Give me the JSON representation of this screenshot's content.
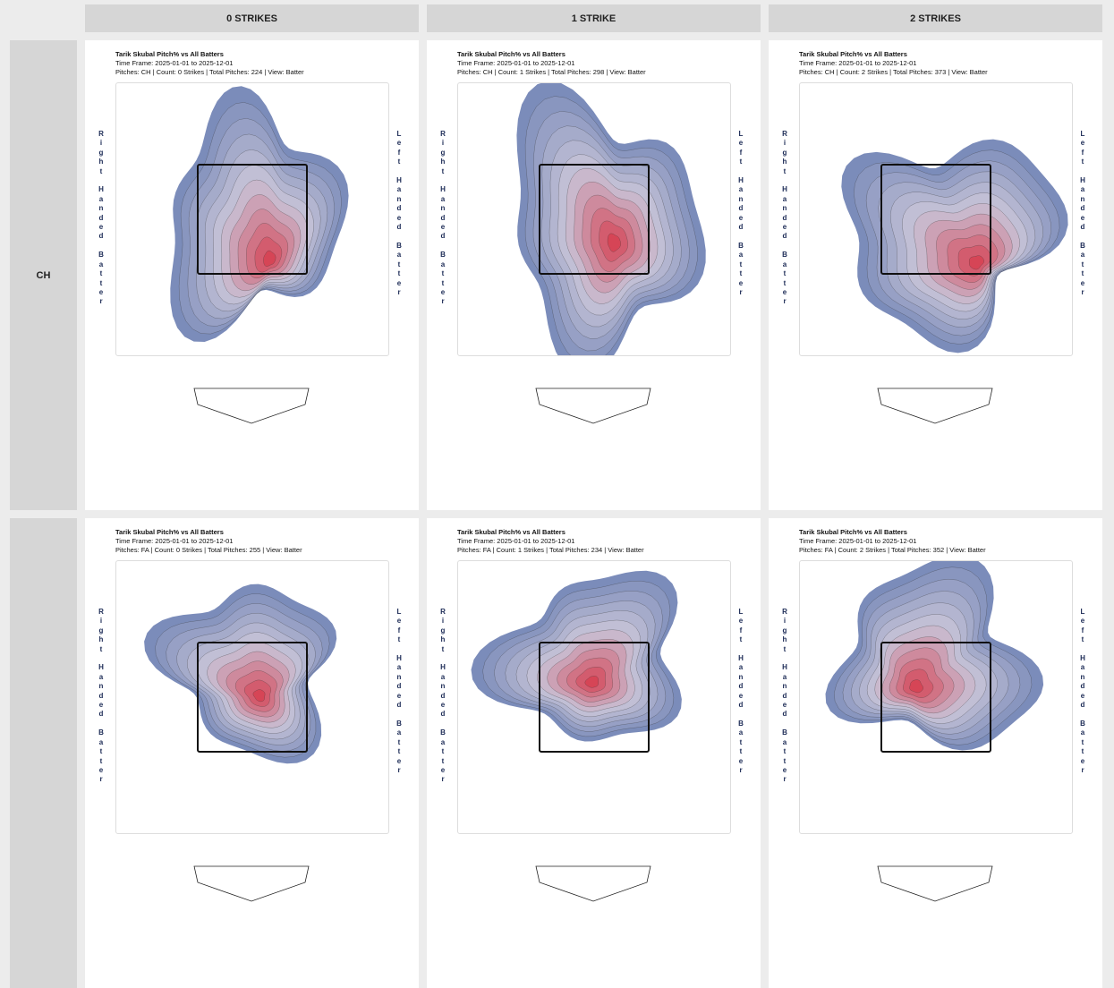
{
  "columns": [
    "0 STRIKES",
    "1 STRIKE",
    "2 STRIKES"
  ],
  "rows": [
    {
      "label": "CH",
      "panels": [
        {
          "title": "Tarik Skubal Pitch% vs All Batters",
          "timeframe": "Time Frame: 2025-01-01 to 2025-12-01",
          "info": "Pitches: CH | Count: 0 Strikes | Total Pitches: 224 | View: Batter"
        },
        {
          "title": "Tarik Skubal Pitch% vs All Batters",
          "timeframe": "Time Frame: 2025-01-01 to 2025-12-01",
          "info": "Pitches: CH | Count: 1 Strikes | Total Pitches: 298 | View: Batter"
        },
        {
          "title": "Tarik Skubal Pitch% vs All Batters",
          "timeframe": "Time Frame: 2025-01-01 to 2025-12-01",
          "info": "Pitches: CH | Count: 2 Strikes | Total Pitches: 373 | View: Batter"
        }
      ]
    },
    {
      "label": "",
      "panels": [
        {
          "title": "Tarik Skubal Pitch% vs All Batters",
          "timeframe": "Time Frame: 2025-01-01 to 2025-12-01",
          "info": "Pitches: FA | Count: 0 Strikes | Total Pitches: 255 | View: Batter"
        },
        {
          "title": "Tarik Skubal Pitch% vs All Batters",
          "timeframe": "Time Frame: 2025-01-01 to 2025-12-01",
          "info": "Pitches: FA | Count: 1 Strikes | Total Pitches: 234 | View: Batter"
        },
        {
          "title": "Tarik Skubal Pitch% vs All Batters",
          "timeframe": "Time Frame: 2025-01-01 to 2025-12-01",
          "info": "Pitches: FA | Count: 2 Strikes | Total Pitches: 352 | View: Batter"
        }
      ]
    }
  ],
  "side_labels": {
    "left": "Right Handed Batter",
    "right": "Left Handed Batter"
  },
  "colors": {
    "low": "#7b8cba",
    "mid": "#c8c4d8",
    "high": "#d64556"
  }
}
